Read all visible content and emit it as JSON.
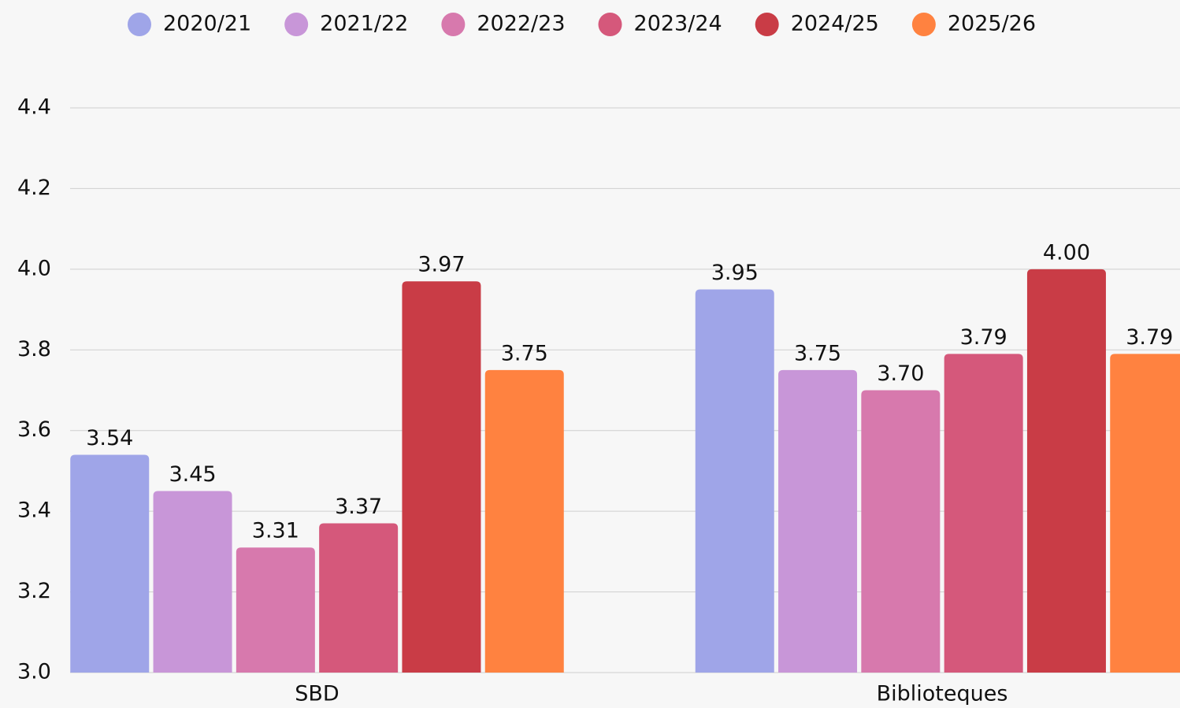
{
  "chart_data": {
    "type": "bar",
    "categories": [
      "SBD",
      "Biblioteques"
    ],
    "series": [
      {
        "name": "2020/21",
        "color": "#9fa5e8",
        "values": [
          3.54,
          3.95
        ],
        "value_labels": [
          "3.54",
          "3.95"
        ]
      },
      {
        "name": "2021/22",
        "color": "#c896d8",
        "values": [
          3.45,
          3.75
        ],
        "value_labels": [
          "3.45",
          "3.75"
        ]
      },
      {
        "name": "2022/23",
        "color": "#d779ad",
        "values": [
          3.31,
          3.7
        ],
        "value_labels": [
          "3.31",
          "3.70"
        ]
      },
      {
        "name": "2023/24",
        "color": "#d5587b",
        "values": [
          3.37,
          3.79
        ],
        "value_labels": [
          "3.37",
          "3.79"
        ]
      },
      {
        "name": "2024/25",
        "color": "#c93c46",
        "values": [
          3.97,
          4.0
        ],
        "value_labels": [
          "3.97",
          "4.00"
        ]
      },
      {
        "name": "2025/26",
        "color": "#ff8240",
        "values": [
          3.75,
          3.79
        ],
        "value_labels": [
          "3.75",
          "3.79"
        ]
      }
    ],
    "ylim": [
      3,
      4.4
    ],
    "yticks": [
      {
        "value": 3,
        "label": "3.0"
      },
      3.2,
      3.4,
      3.6,
      3.8,
      {
        "value": 4,
        "label": "4.0"
      },
      4.2,
      4.4
    ],
    "grid": true,
    "legend": "top"
  }
}
